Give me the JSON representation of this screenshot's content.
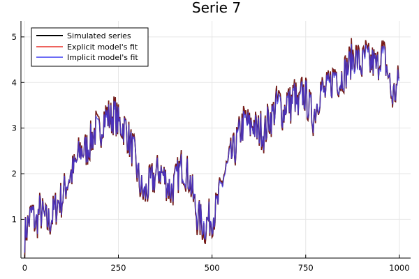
{
  "chart_data": {
    "type": "line",
    "title": "Serie 7",
    "xlabel": "",
    "ylabel": "",
    "xlim": [
      -10,
      1030
    ],
    "ylim": [
      0.15,
      5.35
    ],
    "xticks": [
      0,
      250,
      500,
      750,
      1000
    ],
    "yticks": [
      1,
      2,
      3,
      4,
      5
    ],
    "grid": true,
    "legend_position": "top-left",
    "x_start": 0,
    "x_step": 10,
    "series": [
      {
        "name": "Simulated series",
        "color": "#000000",
        "values": [
          0.6,
          0.95,
          1.15,
          0.85,
          1.2,
          1.05,
          0.9,
          1.0,
          1.2,
          1.4,
          1.45,
          1.75,
          1.95,
          2.05,
          2.3,
          2.55,
          2.5,
          2.6,
          2.8,
          3.0,
          2.85,
          3.25,
          3.3,
          3.2,
          3.35,
          3.1,
          3.05,
          3.0,
          2.7,
          2.5,
          2.05,
          1.65,
          1.5,
          1.7,
          1.85,
          1.95,
          2.1,
          1.95,
          1.8,
          1.6,
          1.75,
          2.0,
          2.2,
          2.05,
          1.9,
          1.45,
          1.05,
          0.95,
          0.8,
          1.0,
          1.05,
          1.2,
          1.5,
          1.95,
          2.1,
          2.35,
          2.5,
          2.8,
          3.05,
          3.2,
          3.0,
          3.15,
          2.9,
          3.0,
          2.85,
          3.2,
          3.25,
          3.5,
          3.6,
          3.3,
          3.65,
          3.5,
          3.8,
          3.35,
          3.8,
          3.7,
          3.45,
          3.25,
          3.55,
          3.9,
          3.75,
          3.85,
          4.05,
          4.3,
          4.0,
          4.2,
          4.3,
          4.5,
          4.65,
          4.5,
          4.35,
          4.6,
          4.4,
          4.45,
          4.3,
          4.7,
          4.55,
          4.2,
          3.65,
          3.8,
          4.1
        ]
      },
      {
        "name": "Explicit model's fit",
        "color": "#e8302a",
        "values": [
          0.6,
          0.95,
          1.15,
          0.85,
          1.2,
          1.05,
          0.9,
          1.0,
          1.2,
          1.4,
          1.45,
          1.75,
          1.95,
          2.05,
          2.3,
          2.55,
          2.5,
          2.6,
          2.8,
          3.0,
          2.85,
          3.25,
          3.3,
          3.2,
          3.35,
          3.1,
          3.05,
          3.0,
          2.7,
          2.5,
          2.05,
          1.65,
          1.5,
          1.7,
          1.85,
          1.95,
          2.1,
          1.95,
          1.8,
          1.6,
          1.75,
          2.0,
          2.2,
          2.05,
          1.9,
          1.45,
          1.05,
          0.95,
          0.8,
          1.0,
          1.05,
          1.2,
          1.5,
          1.95,
          2.1,
          2.35,
          2.5,
          2.8,
          3.05,
          3.2,
          3.0,
          3.15,
          2.9,
          3.0,
          2.85,
          3.2,
          3.25,
          3.5,
          3.6,
          3.3,
          3.65,
          3.5,
          3.8,
          3.35,
          3.8,
          3.7,
          3.45,
          3.25,
          3.55,
          3.9,
          3.75,
          3.85,
          4.05,
          4.3,
          4.0,
          4.2,
          4.3,
          4.5,
          4.65,
          4.5,
          4.35,
          4.6,
          4.4,
          4.45,
          4.3,
          4.7,
          4.55,
          4.2,
          3.65,
          3.8,
          4.1
        ]
      },
      {
        "name": "Implicit model's fit",
        "color": "#3b3bf2",
        "values": [
          0.65,
          0.95,
          1.15,
          0.9,
          1.2,
          1.05,
          0.95,
          1.0,
          1.2,
          1.4,
          1.45,
          1.75,
          1.95,
          2.05,
          2.3,
          2.5,
          2.5,
          2.6,
          2.8,
          2.95,
          2.85,
          3.2,
          3.25,
          3.2,
          3.3,
          3.1,
          3.05,
          3.0,
          2.7,
          2.5,
          2.1,
          1.7,
          1.55,
          1.7,
          1.85,
          1.95,
          2.1,
          1.95,
          1.8,
          1.65,
          1.75,
          2.0,
          2.15,
          2.05,
          1.9,
          1.5,
          1.1,
          1.0,
          0.85,
          1.0,
          1.05,
          1.2,
          1.5,
          1.9,
          2.1,
          2.35,
          2.5,
          2.8,
          3.0,
          3.15,
          3.0,
          3.1,
          2.9,
          3.0,
          2.85,
          3.2,
          3.25,
          3.45,
          3.55,
          3.3,
          3.6,
          3.5,
          3.75,
          3.35,
          3.75,
          3.7,
          3.45,
          3.25,
          3.55,
          3.85,
          3.75,
          3.85,
          4.0,
          4.25,
          4.0,
          4.2,
          4.25,
          4.45,
          4.55,
          4.45,
          4.35,
          4.55,
          4.4,
          4.45,
          4.3,
          4.6,
          4.5,
          4.2,
          3.7,
          3.8,
          4.05
        ]
      }
    ]
  }
}
